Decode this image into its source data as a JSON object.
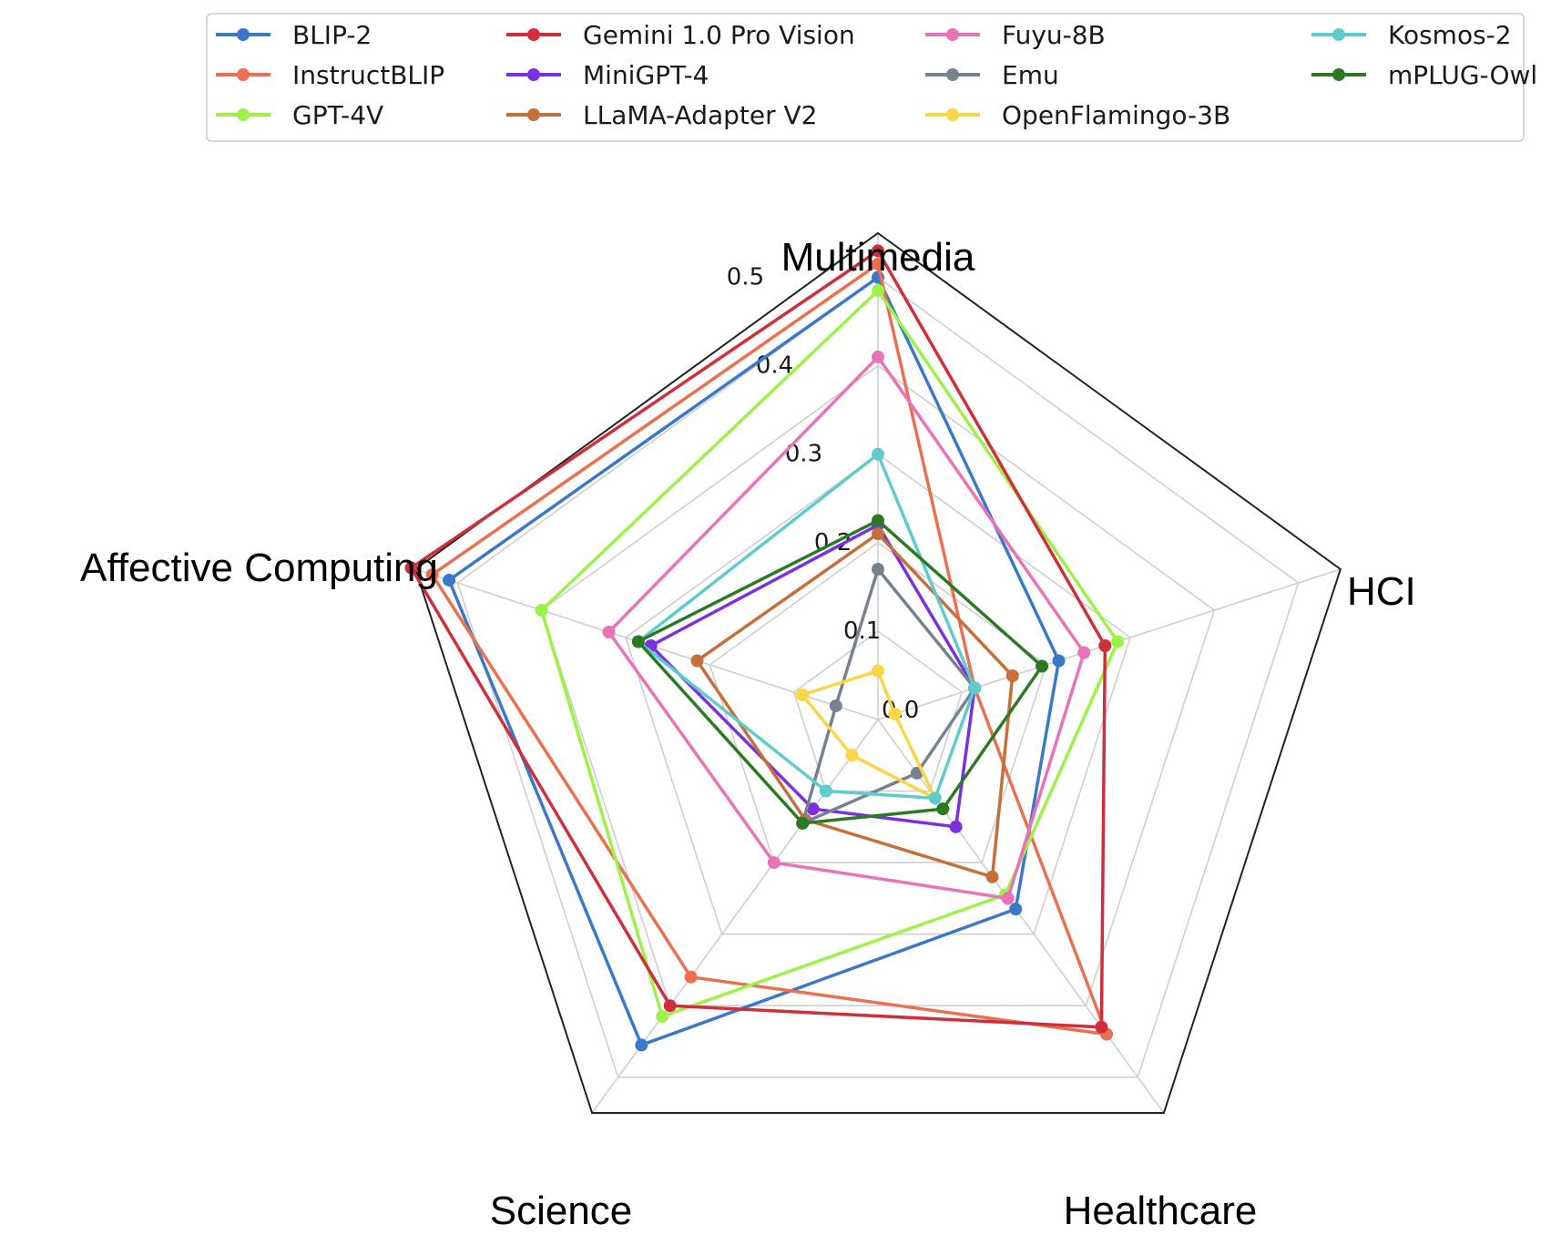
{
  "chart_data": {
    "type": "radar",
    "axes": [
      "Multimedia",
      "HCI",
      "Healthcare",
      "Science",
      "Affective Computing"
    ],
    "rmax": 0.55,
    "ticks": [
      0.0,
      0.1,
      0.2,
      0.3,
      0.4,
      0.5
    ],
    "tick_labels": [
      "0.0",
      "0.1",
      "0.2",
      "0.3",
      "0.4",
      "0.5"
    ],
    "grid": true,
    "legend_position": "top",
    "series": [
      {
        "name": "BLIP-2",
        "color": "#3a78c9",
        "values": [
          0.5,
          0.215,
          0.265,
          0.455,
          0.51
        ]
      },
      {
        "name": "InstructBLIP",
        "color": "#ec6f50",
        "values": [
          0.515,
          0.115,
          0.44,
          0.36,
          0.53
        ]
      },
      {
        "name": "GPT-4V",
        "color": "#9df24a",
        "values": [
          0.485,
          0.285,
          0.245,
          0.415,
          0.4
        ]
      },
      {
        "name": "Gemini 1.0 Pro Vision",
        "color": "#cf2f3b",
        "values": [
          0.53,
          0.27,
          0.43,
          0.4,
          0.555
        ]
      },
      {
        "name": "MiniGPT-4",
        "color": "#7b30e0",
        "values": [
          0.22,
          0.115,
          0.15,
          0.125,
          0.27
        ]
      },
      {
        "name": "LLaMA-Adapter V2",
        "color": "#c5703a",
        "values": [
          0.21,
          0.16,
          0.22,
          0.14,
          0.215
        ]
      },
      {
        "name": "Fuyu-8B",
        "color": "#ea73b8",
        "values": [
          0.41,
          0.245,
          0.25,
          0.2,
          0.32
        ]
      },
      {
        "name": "Emu",
        "color": "#76828f",
        "values": [
          0.17,
          0.115,
          0.075,
          0.145,
          0.05
        ]
      },
      {
        "name": "OpenFlamingo-3B",
        "color": "#fcd545",
        "values": [
          0.055,
          0.02,
          0.11,
          0.05,
          0.09
        ]
      },
      {
        "name": "Kosmos-2",
        "color": "#5ecbcc",
        "values": [
          0.3,
          0.115,
          0.11,
          0.1,
          0.285
        ]
      },
      {
        "name": "mPLUG-Owl",
        "color": "#2a7a24",
        "values": [
          0.225,
          0.195,
          0.125,
          0.145,
          0.285
        ]
      }
    ]
  }
}
